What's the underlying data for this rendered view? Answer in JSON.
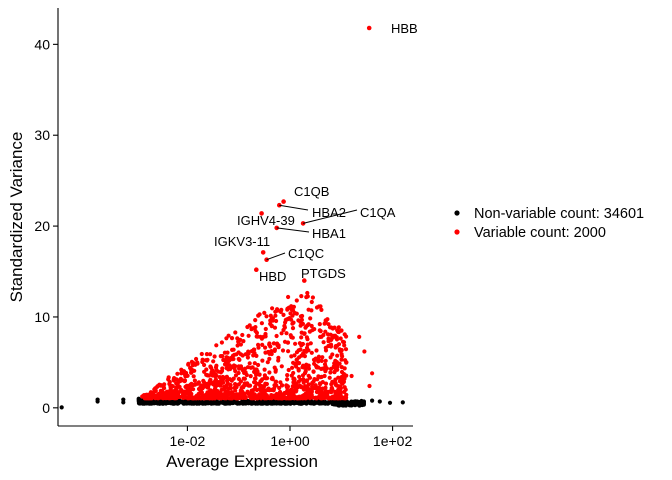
{
  "chart_data": {
    "type": "scatter",
    "title": "",
    "xlabel": "Average Expression",
    "ylabel": "Standardized Variance",
    "x_scale": "log10",
    "xlim": [
      3e-05,
      250
    ],
    "ylim": [
      -2,
      44
    ],
    "x_ticks": [
      {
        "value": 0.01,
        "label": "1e-02"
      },
      {
        "value": 1,
        "label": "1e+00"
      },
      {
        "value": 100,
        "label": "1e+02"
      }
    ],
    "y_ticks": [
      {
        "value": 0,
        "label": "0"
      },
      {
        "value": 10,
        "label": "10"
      },
      {
        "value": 20,
        "label": "20"
      },
      {
        "value": 30,
        "label": "30"
      },
      {
        "value": 40,
        "label": "40"
      }
    ],
    "grid": false,
    "legend_position": "right",
    "series": [
      {
        "name": "Non-variable count: 34601",
        "color": "#000000"
      },
      {
        "name": "Variable count: 2000",
        "color": "#ff0000"
      }
    ],
    "labeled_points": [
      {
        "gene": "HBB",
        "x": 35,
        "y": 41.8
      },
      {
        "gene": "C1QB",
        "x": 0.75,
        "y": 22.7
      },
      {
        "gene": "HBA2",
        "x": 0.62,
        "y": 22.3
      },
      {
        "gene": "C1QA",
        "x": 1.8,
        "y": 20.3
      },
      {
        "gene": "IGHV4-39",
        "x": 0.28,
        "y": 21.4
      },
      {
        "gene": "HBA1",
        "x": 0.55,
        "y": 19.8
      },
      {
        "gene": "IGKV3-11",
        "x": 0.3,
        "y": 17.1
      },
      {
        "gene": "C1QC",
        "x": 0.35,
        "y": 16.3
      },
      {
        "gene": "HBD",
        "x": 0.22,
        "y": 15.2
      },
      {
        "gene": "PTGDS",
        "x": 1.9,
        "y": 14.0
      }
    ]
  }
}
